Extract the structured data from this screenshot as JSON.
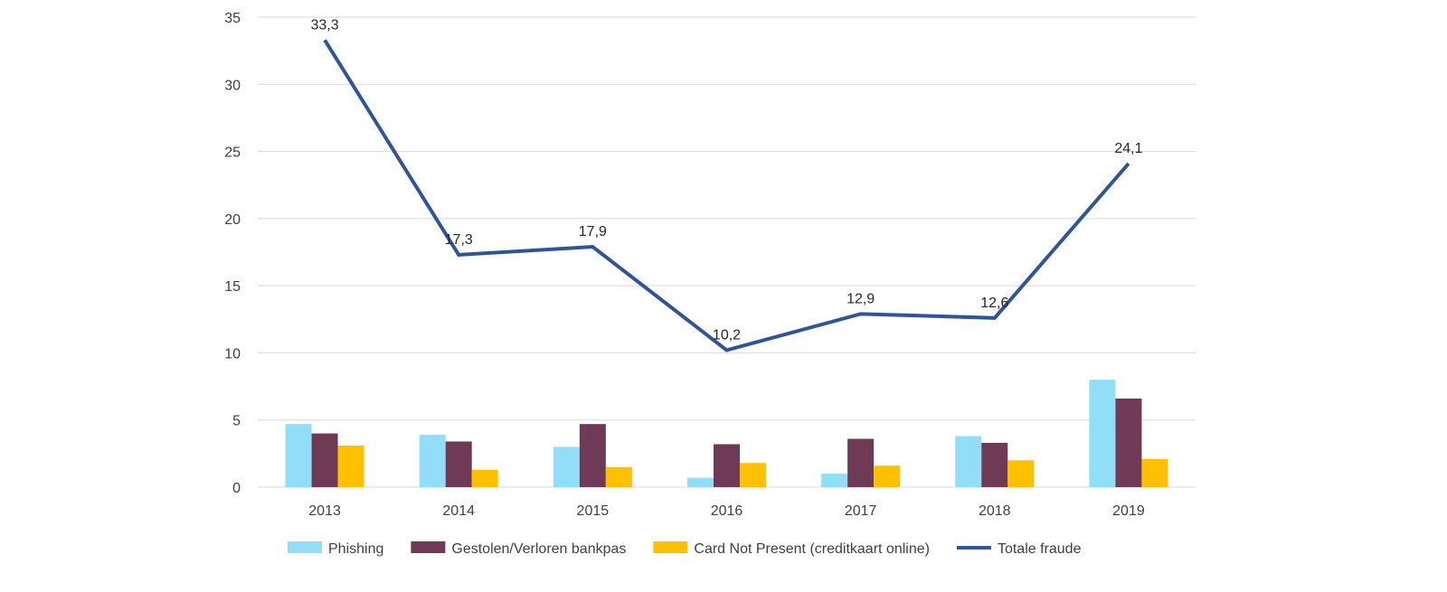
{
  "chart_data": {
    "type": "bar",
    "categories": [
      "2013",
      "2014",
      "2015",
      "2016",
      "2017",
      "2018",
      "2019"
    ],
    "ylim": [
      0,
      35
    ],
    "yticks": [
      "0",
      "5",
      "10",
      "15",
      "20",
      "25",
      "30",
      "35"
    ],
    "grid": true,
    "legend_position": "bottom",
    "series": [
      {
        "name": "Phishing",
        "kind": "bar",
        "color": "#92DDF8",
        "values": [
          4.7,
          3.9,
          3.0,
          0.7,
          1.0,
          3.8,
          8.0
        ]
      },
      {
        "name": "Gestolen/Verloren bankpas",
        "kind": "bar",
        "color": "#6E3A55",
        "values": [
          4.0,
          3.4,
          4.7,
          3.2,
          3.6,
          3.3,
          6.6
        ]
      },
      {
        "name": "Card Not Present (creditkaart online)",
        "kind": "bar",
        "color": "#FFC000",
        "values": [
          3.1,
          1.3,
          1.5,
          1.8,
          1.6,
          2.0,
          2.1
        ]
      },
      {
        "name": "Totale fraude",
        "kind": "line",
        "color": "#2F5597",
        "values": [
          33.3,
          17.3,
          17.9,
          10.2,
          12.9,
          12.6,
          24.1
        ],
        "labels": [
          "33,3",
          "17,3",
          "17,9",
          "10,2",
          "12,9",
          "12,6",
          "24,1"
        ]
      }
    ]
  }
}
